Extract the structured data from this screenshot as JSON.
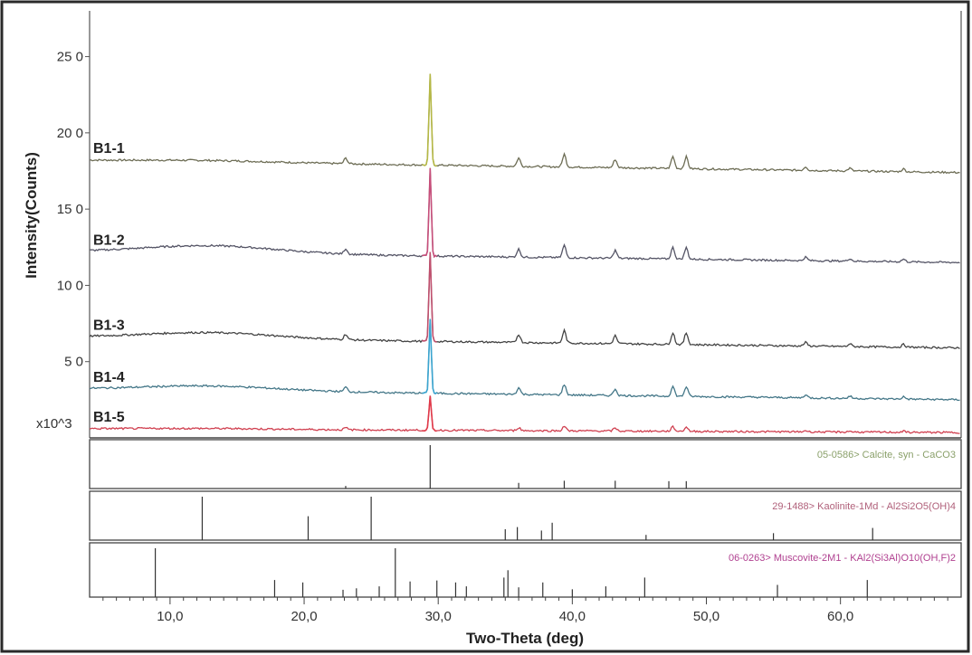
{
  "chart_data": {
    "type": "line",
    "title": "",
    "xlabel": "Two-Theta (deg)",
    "ylabel": "Intensity(Counts)",
    "y_multiplier_label": "x10^3",
    "xlim": [
      4,
      69
    ],
    "ylim": [
      0,
      28
    ],
    "x_ticks": [
      "10,0",
      "20,0",
      "30,0",
      "40,0",
      "50,0",
      "60,0"
    ],
    "y_ticks": [
      {
        "value": 5,
        "label": "5 0"
      },
      {
        "value": 10,
        "label": "10 0"
      },
      {
        "value": 15,
        "label": "15 0"
      },
      {
        "value": 20,
        "label": "20 0"
      },
      {
        "value": 25,
        "label": "25 0"
      }
    ],
    "peaks_2theta": [
      23.1,
      29.4,
      36.0,
      39.4,
      43.2,
      47.5,
      48.5,
      57.4,
      60.7,
      64.7
    ],
    "peak_rel_intensity": [
      0.06,
      1.0,
      0.09,
      0.14,
      0.09,
      0.13,
      0.13,
      0.04,
      0.03,
      0.03
    ],
    "series": [
      {
        "name": "B1-1",
        "baseline": 18.2,
        "end": 17.4,
        "peak_height": 6.0,
        "hump": 0.1,
        "color": "#6d6d55",
        "peak_color": "#b5b845"
      },
      {
        "name": "B1-2",
        "baseline": 12.2,
        "end": 11.5,
        "peak_height": 5.8,
        "hump": 0.5,
        "color": "#555566",
        "peak_color": "#c74e7a"
      },
      {
        "name": "B1-3",
        "baseline": 6.6,
        "end": 5.9,
        "peak_height": 5.9,
        "hump": 0.4,
        "color": "#444444",
        "peak_color": "#c0506e"
      },
      {
        "name": "B1-4",
        "baseline": 3.2,
        "end": 2.5,
        "peak_height": 4.9,
        "hump": 0.3,
        "color": "#447788",
        "peak_color": "#3ba5d0"
      },
      {
        "name": "B1-5",
        "baseline": 0.6,
        "end": 0.35,
        "peak_height": 2.2,
        "hump": 0.05,
        "color": "#d04050",
        "peak_color": "#e03a4a"
      }
    ],
    "reference_patterns": [
      {
        "label": "05-0586> Calcite, syn - CaCO3",
        "color": "#8aa06a",
        "lines": [
          [
            23.1,
            0.06
          ],
          [
            29.4,
            1.0
          ],
          [
            36.0,
            0.13
          ],
          [
            39.4,
            0.18
          ],
          [
            43.2,
            0.18
          ],
          [
            47.2,
            0.17
          ],
          [
            48.5,
            0.17
          ]
        ]
      },
      {
        "label": "29-1488> Kaolinite-1Md - Al2Si2O5(OH)4",
        "color": "#b0607a",
        "lines": [
          [
            12.4,
            1.0
          ],
          [
            20.3,
            0.55
          ],
          [
            25.0,
            1.0
          ],
          [
            35.0,
            0.25
          ],
          [
            35.9,
            0.3
          ],
          [
            37.7,
            0.22
          ],
          [
            38.5,
            0.4
          ],
          [
            45.5,
            0.12
          ],
          [
            55.0,
            0.16
          ],
          [
            62.4,
            0.28
          ]
        ]
      },
      {
        "label": "06-0263> Muscovite-2M1 - KAl2(Si3Al)O10(OH,F)2",
        "color": "#b04090",
        "lines": [
          [
            8.9,
            1.0
          ],
          [
            17.8,
            0.35
          ],
          [
            19.9,
            0.3
          ],
          [
            22.9,
            0.15
          ],
          [
            23.9,
            0.18
          ],
          [
            25.6,
            0.22
          ],
          [
            26.8,
            1.0
          ],
          [
            27.9,
            0.32
          ],
          [
            29.9,
            0.34
          ],
          [
            31.3,
            0.3
          ],
          [
            32.1,
            0.22
          ],
          [
            34.9,
            0.4
          ],
          [
            35.2,
            0.55
          ],
          [
            36.0,
            0.2
          ],
          [
            37.8,
            0.3
          ],
          [
            40.0,
            0.16
          ],
          [
            42.5,
            0.22
          ],
          [
            45.4,
            0.4
          ],
          [
            55.3,
            0.25
          ],
          [
            62.0,
            0.35
          ]
        ]
      }
    ]
  }
}
